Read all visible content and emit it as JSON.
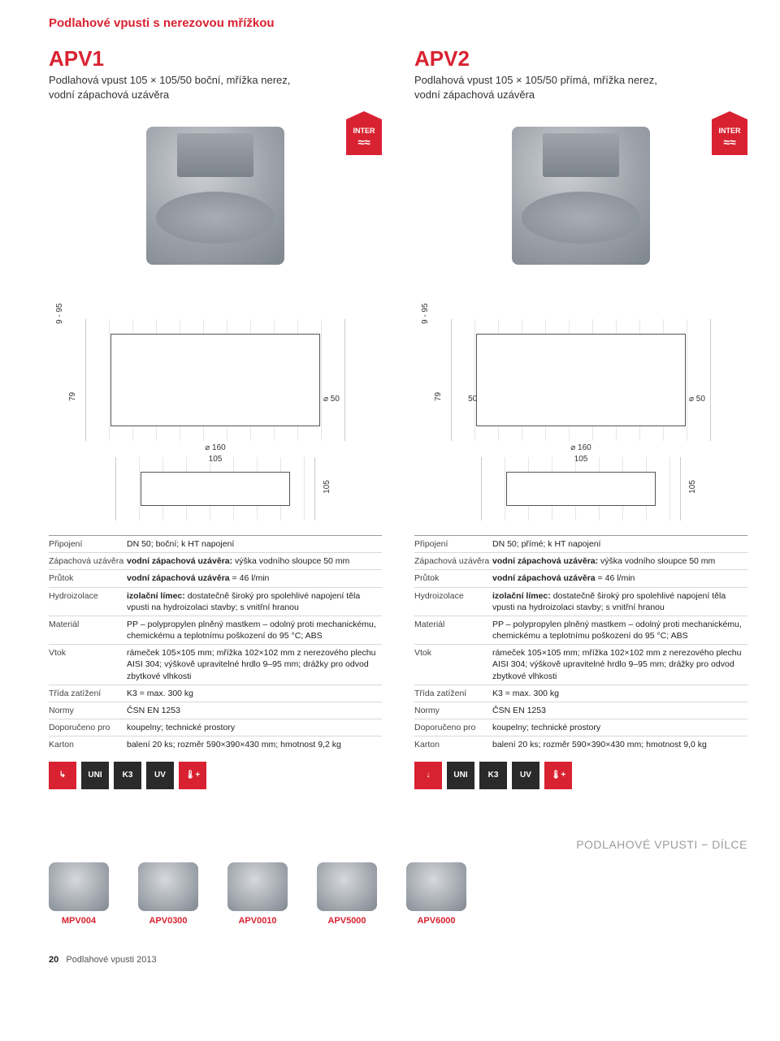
{
  "colors": {
    "accent": "#d92231",
    "text": "#333333",
    "muted": "#9a9c9f",
    "rule": "#d6d8db",
    "iconDark": "#2a2a2a",
    "bg": "#ffffff"
  },
  "pageTitle": "Podlahové vpusti s nerezovou mřížkou",
  "products": [
    {
      "code": "APV1",
      "desc": "Podlahová vpust 105 × 105/50 boční, mřížka nerez,\nvodní zápachová uzávěra",
      "badge": "INTER",
      "drawing": {
        "dims": {
          "height_range": "9 - 95",
          "flange": "79",
          "pipe_d": "⌀ 50",
          "base_d": "⌀ 160",
          "grate_w": "105",
          "grate_h": "105"
        }
      },
      "specs": [
        {
          "k": "Připojení",
          "v": "DN 50; boční; k HT napojení"
        },
        {
          "k": "Zápachová uzávěra",
          "v": "<b>vodní zápachová uzávěra:</b> výška vodního sloupce 50 mm"
        },
        {
          "k": "Průtok",
          "v": "<b>vodní zápachová uzávěra</b> = 46 l/min"
        },
        {
          "k": "Hydroizolace",
          "v": "<b>izolační límec:</b> dostatečně široký pro spolehlivé napojení těla vpusti na hydroizolaci stavby; s vnitřní hranou"
        },
        {
          "k": "Materiál",
          "v": "PP – polypropylen plněný mastkem – odolný proti mechanickému, chemickému a teplotnímu poškození do 95 °C; ABS"
        },
        {
          "k": "Vtok",
          "v": "rámeček 105×105 mm; mřížka 102×102 mm z nerezového plechu AISI 304; výškově upravitelné hrdlo 9–95 mm; drážky pro odvod zbytkové vlhkosti"
        },
        {
          "k": "Třída zatížení",
          "v": "K3 = max. 300 kg"
        },
        {
          "k": "Normy",
          "v": "ČSN EN 1253"
        },
        {
          "k": "Doporučeno pro",
          "v": "koupelny; technické prostory"
        },
        {
          "k": "Karton",
          "v": "balení 20 ks; rozměr 590×390×430 mm; hmotnost 9,2 kg"
        }
      ],
      "icons": [
        {
          "label": "↳",
          "cls": ""
        },
        {
          "label": "UNI",
          "cls": "blk"
        },
        {
          "label": "K3",
          "cls": "blk"
        },
        {
          "label": "UV",
          "cls": "blk"
        },
        {
          "label": "🌡+",
          "cls": ""
        }
      ]
    },
    {
      "code": "APV2",
      "desc": "Podlahová vpust 105 × 105/50 přímá, mřížka nerez,\nvodní zápachová uzávěra",
      "badge": "INTER",
      "drawing": {
        "dims": {
          "height_range": "9 - 95",
          "flange": "79",
          "pipe_d": "⌀ 50",
          "pipe_off": "50",
          "base_d": "⌀ 160",
          "grate_w": "105",
          "grate_h": "105"
        }
      },
      "specs": [
        {
          "k": "Připojení",
          "v": "DN 50; přímé; k HT napojení"
        },
        {
          "k": "Zápachová uzávěra",
          "v": "<b>vodní zápachová uzávěra:</b> výška vodního sloupce 50 mm"
        },
        {
          "k": "Průtok",
          "v": "<b>vodní zápachová uzávěra</b> = 46 l/min"
        },
        {
          "k": "Hydroizolace",
          "v": "<b>izolační límec:</b> dostatečně široký pro spolehlivé napojení těla vpusti na hydroizolaci stavby; s vnitřní hranou"
        },
        {
          "k": "Materiál",
          "v": "PP – polypropylen plněný mastkem – odolný proti mechanickému, chemickému a teplotnímu poškození do 95 °C; ABS"
        },
        {
          "k": "Vtok",
          "v": "rámeček 105×105 mm; mřížka 102×102 mm z nerezového plechu AISI 304; výškově upravitelné hrdlo 9–95 mm; drážky pro odvod zbytkové vlhkosti"
        },
        {
          "k": "Třída zatížení",
          "v": "K3 = max. 300 kg"
        },
        {
          "k": "Normy",
          "v": "ČSN EN 1253"
        },
        {
          "k": "Doporučeno pro",
          "v": "koupelny; technické prostory"
        },
        {
          "k": "Karton",
          "v": "balení 20 ks; rozměr 590×390×430 mm; hmotnost 9,0 kg"
        }
      ],
      "icons": [
        {
          "label": "↓",
          "cls": ""
        },
        {
          "label": "UNI",
          "cls": "blk"
        },
        {
          "label": "K3",
          "cls": "blk"
        },
        {
          "label": "UV",
          "cls": "blk"
        },
        {
          "label": "🌡+",
          "cls": ""
        }
      ]
    }
  ],
  "sectionLabel": "PODLAHOVÉ VPUSTI − DÍLCE",
  "parts": [
    {
      "code": "MPV004"
    },
    {
      "code": "APV0300"
    },
    {
      "code": "APV0010"
    },
    {
      "code": "APV5000"
    },
    {
      "code": "APV6000"
    }
  ],
  "footer": {
    "page": "20",
    "text": "Podlahové vpusti 2013"
  }
}
